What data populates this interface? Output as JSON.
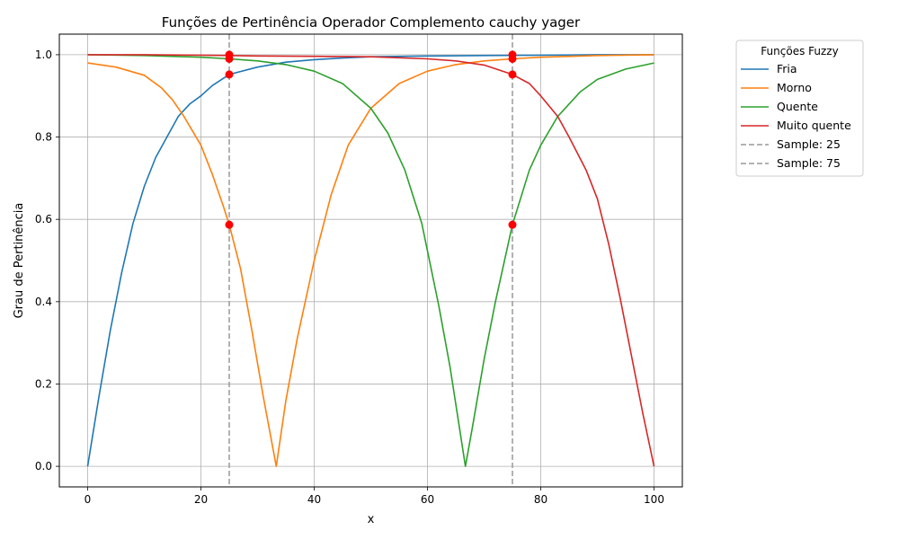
{
  "chart_data": {
    "type": "line",
    "title": "Funções de Pertinência Operador Complemento cauchy yager",
    "xlabel": "x",
    "ylabel": "Grau de Pertinência",
    "xlim": [
      -5,
      105
    ],
    "ylim": [
      -0.05,
      1.05
    ],
    "x_ticks": [
      0,
      20,
      40,
      60,
      80,
      100
    ],
    "y_ticks": [
      0.0,
      0.2,
      0.4,
      0.6,
      0.8,
      1.0
    ],
    "x_tick_labels": [
      "0",
      "20",
      "40",
      "60",
      "80",
      "100"
    ],
    "y_tick_labels": [
      "0.0",
      "0.2",
      "0.4",
      "0.6",
      "0.8",
      "1.0"
    ],
    "grid": true,
    "legend_title": "Funções Fuzzy",
    "legend_position": "outside-right",
    "series": [
      {
        "name": "Fria",
        "color": "#1f77b4",
        "x": [
          0,
          2,
          4,
          6,
          8,
          10,
          12,
          14,
          16,
          18,
          20,
          22,
          25,
          30,
          35,
          40,
          45,
          50,
          60,
          70,
          80,
          90,
          100
        ],
        "y": [
          0.0,
          0.17,
          0.33,
          0.47,
          0.59,
          0.68,
          0.75,
          0.8,
          0.85,
          0.88,
          0.9,
          0.925,
          0.952,
          0.97,
          0.982,
          0.988,
          0.992,
          0.995,
          0.997,
          0.998,
          0.999,
          1.0,
          1.0
        ]
      },
      {
        "name": "Morno",
        "color": "#ff7f0e",
        "x": [
          0,
          5,
          10,
          13,
          15,
          17,
          20,
          22,
          24,
          25,
          27,
          29,
          31,
          33.3,
          35,
          37,
          40,
          43,
          46,
          50,
          55,
          60,
          65,
          70,
          75,
          80,
          90,
          100
        ],
        "y": [
          0.98,
          0.97,
          0.95,
          0.92,
          0.89,
          0.85,
          0.78,
          0.71,
          0.63,
          0.587,
          0.48,
          0.33,
          0.17,
          0.0,
          0.16,
          0.31,
          0.5,
          0.66,
          0.78,
          0.87,
          0.93,
          0.96,
          0.976,
          0.985,
          0.99,
          0.994,
          0.998,
          1.0
        ]
      },
      {
        "name": "Quente",
        "color": "#2ca02c",
        "x": [
          0,
          10,
          20,
          25,
          30,
          35,
          40,
          45,
          50,
          53,
          56,
          59,
          62,
          64,
          66.7,
          68,
          70,
          72,
          75,
          78,
          80,
          83,
          87,
          90,
          95,
          100
        ],
        "y": [
          1.0,
          0.998,
          0.994,
          0.99,
          0.985,
          0.976,
          0.96,
          0.93,
          0.87,
          0.81,
          0.72,
          0.59,
          0.39,
          0.24,
          0.0,
          0.1,
          0.26,
          0.4,
          0.587,
          0.72,
          0.78,
          0.85,
          0.91,
          0.94,
          0.965,
          0.98
        ]
      },
      {
        "name": "Muito quente",
        "color": "#d62728",
        "x": [
          0,
          10,
          20,
          25,
          30,
          40,
          50,
          60,
          65,
          70,
          75,
          78,
          80,
          83,
          85,
          88,
          90,
          92,
          94,
          96,
          98,
          100
        ],
        "y": [
          1.0,
          1.0,
          0.999,
          0.998,
          0.997,
          0.996,
          0.995,
          0.99,
          0.985,
          0.975,
          0.952,
          0.93,
          0.9,
          0.85,
          0.8,
          0.72,
          0.65,
          0.54,
          0.41,
          0.27,
          0.13,
          0.0
        ]
      }
    ],
    "vlines": [
      {
        "name": "Sample: 25",
        "x": 25,
        "color": "#999999"
      },
      {
        "name": "Sample: 75",
        "x": 75,
        "color": "#999999"
      }
    ],
    "markers": [
      {
        "x": 25,
        "y": 0.952
      },
      {
        "x": 25,
        "y": 0.587
      },
      {
        "x": 25,
        "y": 0.99
      },
      {
        "x": 25,
        "y": 1.0
      },
      {
        "x": 75,
        "y": 1.0
      },
      {
        "x": 75,
        "y": 0.99
      },
      {
        "x": 75,
        "y": 0.587
      },
      {
        "x": 75,
        "y": 0.952
      }
    ],
    "marker_color": "#ff0000"
  }
}
